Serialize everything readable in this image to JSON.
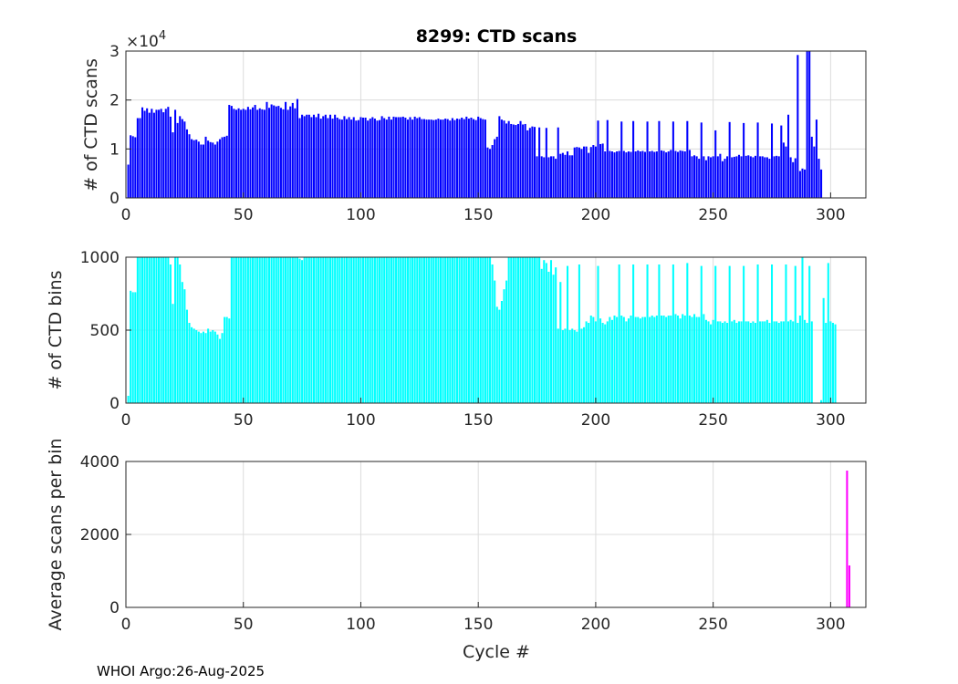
{
  "figure": {
    "footer": "WHOI Argo:26-Aug-2025",
    "xlabel": "Cycle #"
  },
  "chart_data": [
    {
      "type": "bar",
      "title": "8299: CTD scans",
      "ylabel": "# of CTD scans",
      "exponent_label": "×10",
      "exponent_power": "4",
      "color": "#0000ff",
      "xlim": [
        0,
        315
      ],
      "ylim": [
        0,
        3
      ],
      "x_ticks": [
        0,
        50,
        100,
        150,
        200,
        250,
        300
      ],
      "y_ticks": [
        0,
        1,
        2,
        3
      ],
      "start_cycle": 1,
      "values": [
        0.68,
        1.28,
        1.26,
        1.24,
        1.63,
        1.63,
        1.85,
        1.78,
        1.83,
        1.74,
        1.82,
        1.74,
        1.8,
        1.8,
        1.82,
        1.75,
        1.82,
        1.86,
        1.66,
        1.34,
        1.8,
        1.53,
        1.67,
        1.61,
        1.56,
        1.4,
        1.3,
        1.2,
        1.18,
        1.19,
        1.15,
        1.09,
        1.09,
        1.25,
        1.17,
        1.14,
        1.13,
        1.09,
        1.15,
        1.2,
        1.24,
        1.25,
        1.27,
        1.9,
        1.88,
        1.82,
        1.8,
        1.83,
        1.8,
        1.82,
        1.8,
        1.86,
        1.81,
        1.85,
        1.9,
        1.8,
        1.83,
        1.81,
        1.8,
        1.96,
        1.84,
        1.91,
        1.89,
        1.87,
        1.88,
        1.84,
        1.81,
        1.96,
        1.8,
        1.87,
        1.94,
        1.83,
        2.02,
        1.63,
        1.7,
        1.67,
        1.7,
        1.7,
        1.65,
        1.7,
        1.65,
        1.72,
        1.62,
        1.67,
        1.7,
        1.63,
        1.7,
        1.62,
        1.7,
        1.64,
        1.61,
        1.6,
        1.67,
        1.61,
        1.65,
        1.6,
        1.65,
        1.58,
        1.59,
        1.65,
        1.64,
        1.64,
        1.58,
        1.62,
        1.65,
        1.62,
        1.58,
        1.59,
        1.67,
        1.63,
        1.6,
        1.66,
        1.6,
        1.66,
        1.65,
        1.65,
        1.65,
        1.66,
        1.64,
        1.6,
        1.65,
        1.6,
        1.66,
        1.63,
        1.65,
        1.61,
        1.61,
        1.6,
        1.6,
        1.6,
        1.59,
        1.6,
        1.62,
        1.6,
        1.6,
        1.62,
        1.61,
        1.58,
        1.63,
        1.59,
        1.62,
        1.61,
        1.64,
        1.61,
        1.66,
        1.62,
        1.64,
        1.61,
        1.59,
        1.66,
        1.63,
        1.61,
        1.6,
        1.03,
        1.0,
        1.08,
        1.2,
        1.25,
        1.67,
        1.6,
        1.58,
        1.52,
        1.57,
        1.51,
        1.5,
        1.49,
        1.51,
        1.57,
        1.5,
        1.51,
        1.38,
        1.43,
        1.46,
        1.45,
        0.85,
        1.44,
        0.85,
        0.83,
        1.43,
        0.83,
        0.85,
        0.85,
        0.8,
        1.44,
        0.9,
        0.92,
        0.88,
        0.95,
        0.87,
        0.87,
        1.03,
        1.04,
        1.03,
        1.0,
        1.05,
        1.05,
        0.92,
        1.04,
        1.08,
        1.05,
        1.58,
        1.1,
        1.11,
        0.95,
        1.59,
        0.96,
        0.95,
        0.93,
        0.95,
        0.96,
        1.56,
        0.96,
        0.93,
        0.95,
        0.94,
        1.57,
        0.95,
        0.97,
        0.95,
        0.96,
        0.94,
        1.56,
        0.95,
        0.96,
        0.94,
        0.95,
        1.57,
        0.97,
        0.96,
        0.93,
        0.95,
        0.98,
        1.56,
        0.96,
        0.94,
        0.97,
        0.96,
        0.95,
        1.57,
        0.98,
        0.85,
        0.87,
        0.85,
        0.8,
        1.54,
        0.85,
        0.77,
        0.85,
        0.83,
        0.85,
        1.38,
        0.85,
        0.9,
        0.75,
        0.8,
        0.85,
        1.55,
        0.83,
        0.84,
        0.85,
        0.88,
        0.85,
        1.53,
        0.86,
        0.87,
        0.85,
        0.83,
        0.86,
        1.54,
        0.85,
        0.85,
        0.83,
        0.83,
        0.8,
        1.52,
        0.85,
        0.86,
        0.85,
        1.48,
        1.13,
        1.05,
        1.7,
        0.83,
        0.73,
        0.81,
        2.92,
        0.55,
        0.6,
        0.58,
        3.2,
        3.2,
        1.25,
        1.05,
        1.6,
        0.8,
        0.58
      ],
      "value_scale": 10000
    },
    {
      "type": "bar",
      "title": "",
      "ylabel": "# of CTD bins",
      "color": "#00ffff",
      "xlim": [
        0,
        315
      ],
      "ylim": [
        0,
        1000
      ],
      "x_ticks": [
        0,
        50,
        100,
        150,
        200,
        250,
        300
      ],
      "y_ticks": [
        0,
        500,
        1000
      ],
      "start_cycle": 1,
      "values": [
        50,
        770,
        760,
        760,
        1000,
        1000,
        1000,
        1000,
        1000,
        1000,
        1000,
        1000,
        1000,
        1000,
        1000,
        1000,
        1000,
        1000,
        950,
        680,
        1000,
        1000,
        950,
        830,
        780,
        640,
        550,
        520,
        510,
        500,
        490,
        480,
        490,
        480,
        510,
        490,
        500,
        490,
        470,
        440,
        480,
        590,
        590,
        580,
        1000,
        1000,
        1000,
        1000,
        1000,
        1000,
        1000,
        1000,
        1000,
        1000,
        1000,
        1000,
        1000,
        1000,
        1000,
        1000,
        1000,
        1000,
        1000,
        1000,
        1000,
        1000,
        1000,
        1000,
        1000,
        1000,
        1000,
        1000,
        1000,
        990,
        980,
        1000,
        1000,
        1000,
        1000,
        1000,
        1000,
        1000,
        1000,
        1000,
        1000,
        1000,
        1000,
        1000,
        1000,
        1000,
        1000,
        1000,
        1000,
        1000,
        1000,
        1000,
        1000,
        1000,
        1000,
        1000,
        1000,
        1000,
        1000,
        1000,
        1000,
        1000,
        1000,
        1000,
        1000,
        1000,
        1000,
        1000,
        1000,
        1000,
        1000,
        1000,
        1000,
        1000,
        1000,
        1000,
        1000,
        1000,
        1000,
        1000,
        1000,
        1000,
        1000,
        1000,
        1000,
        1000,
        1000,
        1000,
        1000,
        1000,
        1000,
        1000,
        1000,
        1000,
        1000,
        1000,
        1000,
        1000,
        1000,
        1000,
        1000,
        1000,
        1000,
        1000,
        1000,
        1000,
        1000,
        1000,
        1000,
        1000,
        1000,
        950,
        840,
        660,
        640,
        700,
        780,
        840,
        1000,
        1000,
        1000,
        1000,
        1000,
        1000,
        1000,
        1000,
        1000,
        1000,
        1000,
        1000,
        1000,
        1000,
        920,
        980,
        960,
        900,
        980,
        880,
        930,
        510,
        830,
        500,
        510,
        940,
        500,
        510,
        500,
        490,
        950,
        510,
        520,
        560,
        550,
        600,
        590,
        560,
        940,
        580,
        550,
        540,
        560,
        590,
        570,
        600,
        590,
        950,
        600,
        590,
        560,
        580,
        600,
        950,
        590,
        590,
        580,
        590,
        590,
        950,
        590,
        600,
        590,
        600,
        950,
        600,
        600,
        590,
        600,
        600,
        950,
        610,
        600,
        580,
        610,
        600,
        960,
        600,
        590,
        610,
        590,
        590,
        940,
        610,
        570,
        560,
        540,
        570,
        940,
        560,
        560,
        550,
        560,
        550,
        940,
        560,
        570,
        550,
        560,
        560,
        940,
        560,
        560,
        550,
        560,
        550,
        950,
        560,
        560,
        560,
        570,
        550,
        950,
        560,
        560,
        550,
        560,
        560,
        950,
        560,
        570,
        560,
        940,
        550,
        600,
        1000,
        570,
        550,
        940,
        560,
        0,
        0,
        0,
        20,
        720,
        550,
        960,
        560,
        550,
        540
      ],
      "value_scale": 1
    },
    {
      "type": "bar",
      "title": "",
      "ylabel": "Average scans per bin",
      "color": "#ff00ff",
      "xlim": [
        0,
        315
      ],
      "ylim": [
        0,
        4000
      ],
      "x_ticks": [
        0,
        50,
        100,
        150,
        200,
        250,
        300
      ],
      "y_ticks": [
        0,
        2000,
        4000
      ],
      "spikes": [
        [
          307,
          3750
        ],
        [
          308,
          1150
        ]
      ],
      "value_scale": 1
    }
  ]
}
